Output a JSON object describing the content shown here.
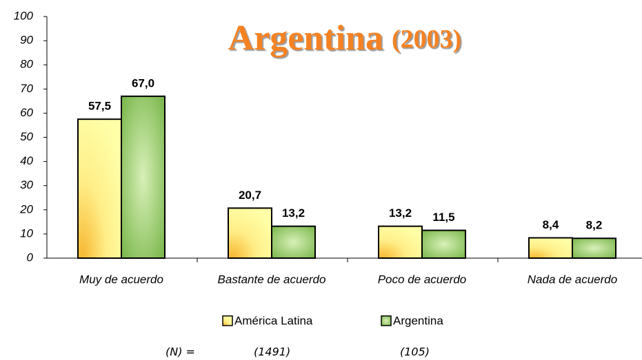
{
  "chart_data": {
    "type": "bar",
    "title": "Argentina",
    "title_suffix": "(2003)",
    "categories": [
      "Muy de acuerdo",
      "Bastante de acuerdo",
      "Poco de acuerdo",
      "Nada de acuerdo"
    ],
    "series": [
      {
        "name": "América Latina",
        "color": "#ffff99",
        "values": [
          57.5,
          20.7,
          13.2,
          8.4
        ],
        "value_labels": [
          "57,5",
          "20,7",
          "13,2",
          "8,4"
        ]
      },
      {
        "name": "Argentina",
        "color": "#99cc66",
        "values": [
          67.0,
          13.2,
          11.5,
          8.2
        ],
        "value_labels": [
          "67,0",
          "13,2",
          "11,5",
          "8,2"
        ]
      }
    ],
    "ylim": [
      0,
      100
    ],
    "yticks": [
      0,
      10,
      20,
      30,
      40,
      50,
      60,
      70,
      80,
      90,
      100
    ],
    "notes": [
      "(N) =",
      "(1491)",
      "(105)"
    ]
  }
}
